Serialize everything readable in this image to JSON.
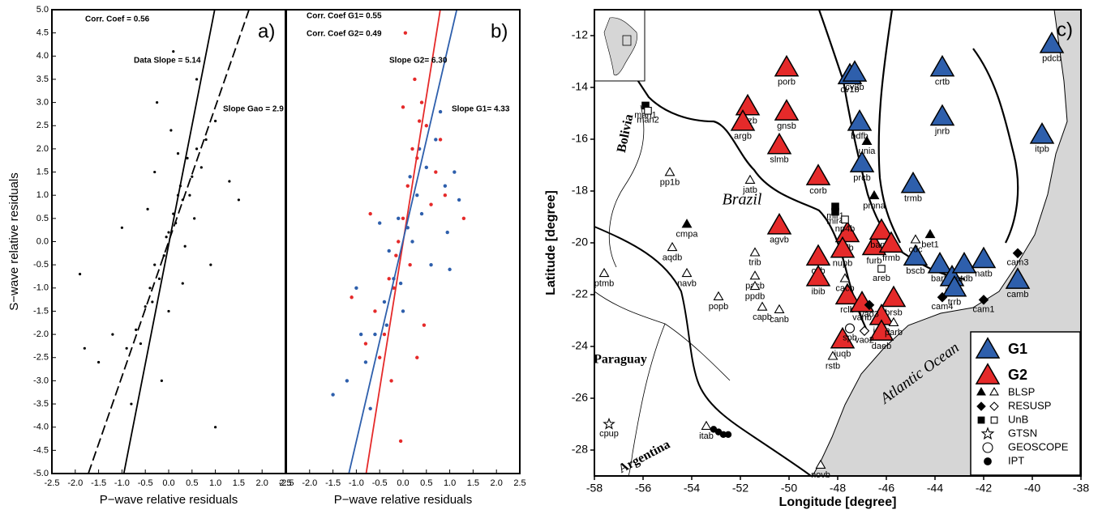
{
  "chart_data": [
    {
      "type": "scatter",
      "xlabel": "P−wave relative residuals",
      "ylabel": "S−wave relative residuals",
      "xlim": [
        -2.5,
        2.5
      ],
      "ylim": [
        -5,
        5
      ],
      "xticks": [
        -2.5,
        {
          "value": -2,
          "label": "-2.0"
        },
        -1.5,
        {
          "value": -1,
          "label": "-1.0"
        },
        -0.5,
        {
          "value": 0,
          "label": "0.0"
        },
        0.5,
        {
          "value": 1,
          "label": "1.0"
        },
        1.5,
        {
          "value": 2,
          "label": "2.0"
        },
        2.5
      ],
      "yticks": [
        {
          "value": -5,
          "label": "-5.0"
        },
        -4.5,
        {
          "value": -4,
          "label": "-4.0"
        },
        -3.5,
        {
          "value": -3,
          "label": "-3.0"
        },
        -2.5,
        {
          "value": -2,
          "label": "-2.0"
        },
        -1.5,
        {
          "value": -1,
          "label": "-1.0"
        },
        -0.5,
        {
          "value": 0,
          "label": "0.0"
        },
        0.5,
        {
          "value": 1,
          "label": "1.0"
        },
        1.5,
        {
          "value": 2,
          "label": "2.0"
        },
        2.5,
        {
          "value": 3,
          "label": "3.0"
        },
        3.5,
        {
          "value": 4,
          "label": "4.0"
        },
        4.5,
        {
          "value": 5,
          "label": "5.0"
        }
      ],
      "annotations": [
        "Corr. Coef = 0.56",
        "Data Slope = 5.14",
        "Slope Gao = 2.9",
        "a)"
      ],
      "series": [
        {
          "color": "#000000",
          "x": [
            -0.3,
            0.1,
            0.2,
            -0.1,
            0.4,
            -0.5,
            0.0,
            0.3,
            -0.2,
            0.6,
            -0.7,
            0.5,
            0.8,
            -0.4,
            0.15,
            -0.05,
            0.25,
            -0.35,
            0.45,
            -0.6,
            0.7,
            -0.9,
            1.0,
            -1.2,
            1.3,
            -1.5,
            1.5,
            -1.9,
            -1.8,
            0.35,
            0.05,
            -0.15,
            0.55,
            -0.25,
            0.1,
            -0.8,
            0.9,
            0.0,
            0.2,
            -0.45,
            -0.3,
            0.6,
            1.0,
            -1.0,
            0.3
          ],
          "values": [
            -0.5,
            0.6,
            1.0,
            -0.3,
            1.8,
            -1.4,
            0.2,
            0.9,
            -0.8,
            2.0,
            -1.9,
            1.4,
            2.2,
            -1.0,
            0.4,
            0.1,
            1.2,
            -1.3,
            1.0,
            -2.2,
            1.6,
            -2.3,
            2.6,
            -2.0,
            1.3,
            -2.6,
            0.9,
            -0.7,
            -2.3,
            -0.1,
            2.4,
            -3.0,
            0.5,
            3.0,
            4.1,
            -3.5,
            -0.5,
            -1.5,
            1.9,
            0.7,
            1.5,
            3.5,
            -4.0,
            0.3,
            -0.9
          ]
        }
      ],
      "lines": [
        {
          "color": "#000000",
          "dash": false,
          "x": [
            -0.96,
            0.985
          ],
          "values": [
            -5,
            5
          ]
        },
        {
          "color": "#000000",
          "dash": true,
          "x": [
            -1.72,
            1.72
          ],
          "values": [
            -5,
            5
          ]
        }
      ]
    },
    {
      "type": "scatter",
      "xlabel": "P−wave relative residuals",
      "xlim": [
        -2.5,
        2.5
      ],
      "ylim": [
        -5,
        5
      ],
      "xticks": [
        -2.5,
        {
          "value": -2,
          "label": "-2.0"
        },
        -1.5,
        {
          "value": -1,
          "label": "-1.0"
        },
        -0.5,
        {
          "value": 0,
          "label": "0.0"
        },
        0.5,
        {
          "value": 1,
          "label": "1.0"
        },
        1.5,
        {
          "value": 2,
          "label": "2.0"
        },
        2.5
      ],
      "annotations": [
        "Corr. Coef G1= 0.55",
        "Corr. Coef G2= 0.49",
        "Slope G2= 6.30",
        "Slope G1= 4.33",
        "b)"
      ],
      "series": [
        {
          "color": "#e52a2a",
          "x": [
            0.0,
            0.2,
            -0.2,
            0.4,
            -0.4,
            0.1,
            -0.1,
            0.3,
            -0.3,
            0.5,
            -0.5,
            0.7,
            -0.6,
            0.25,
            -0.15,
            0.05,
            0.35,
            -0.25,
            0.9,
            -0.8,
            0.45,
            0.15,
            -0.05,
            0.6,
            1.3,
            -1.1,
            0.8,
            -0.7,
            0.3,
            0.0
          ],
          "values": [
            0.5,
            2.0,
            -1.0,
            3.0,
            -2.0,
            1.2,
            0.0,
            1.8,
            -0.8,
            2.5,
            -2.5,
            1.5,
            -1.5,
            3.5,
            -0.3,
            4.5,
            2.6,
            -3.0,
            1.0,
            -2.2,
            -1.8,
            -0.5,
            -4.3,
            0.8,
            0.5,
            -1.2,
            2.2,
            0.6,
            -2.5,
            2.9
          ]
        },
        {
          "color": "#2e5fac",
          "x": [
            0.1,
            -0.2,
            0.3,
            -0.4,
            0.5,
            -0.6,
            0.7,
            -0.8,
            0.9,
            -1.0,
            1.1,
            -1.2,
            0.2,
            -0.1,
            0.4,
            -0.3,
            0.6,
            -0.5,
            0.8,
            -1.5,
            1.2,
            0.0,
            -0.7,
            0.35,
            -0.35,
            0.95,
            -0.9,
            0.15,
            1.0,
            -0.05
          ],
          "values": [
            0.3,
            -0.8,
            1.0,
            -1.3,
            1.6,
            -2.0,
            2.2,
            -2.6,
            1.2,
            -1.0,
            1.5,
            -3.0,
            0.0,
            0.5,
            0.6,
            -0.2,
            -0.5,
            0.4,
            2.8,
            -3.3,
            0.9,
            -1.5,
            -3.6,
            2.0,
            -1.8,
            0.2,
            -2.0,
            1.4,
            -0.6,
            -0.9
          ]
        }
      ],
      "lines": [
        {
          "color": "#e52a2a",
          "dash": false,
          "x": [
            -0.79,
            0.797
          ],
          "values": [
            -5,
            5
          ]
        },
        {
          "color": "#2e5fac",
          "dash": false,
          "x": [
            -1.16,
            1.15
          ],
          "values": [
            -5,
            5
          ]
        }
      ]
    },
    {
      "type": "map",
      "xlabel": "Longitude [degree]",
      "ylabel": "Latitude [degree]",
      "xlim": [
        -58,
        -38
      ],
      "ylim": [
        -29,
        -11
      ],
      "xticks": [
        -58,
        -56,
        -54,
        -52,
        -50,
        -48,
        -46,
        -44,
        -42,
        -40,
        -38
      ],
      "yticks": [
        -28,
        -26,
        -24,
        -22,
        -20,
        -18,
        -16,
        -14,
        -12
      ],
      "annotations": [
        "c)"
      ],
      "places": [
        "Brazil",
        "Paraguay",
        "Argentina",
        "Bolivia",
        "Atlantic Ocean"
      ],
      "legend": {
        "groups": [
          {
            "name": "G1",
            "color": "#2e5fac"
          },
          {
            "name": "G2",
            "color": "#e52a2a"
          }
        ],
        "networks": [
          "BLSP",
          "RESUSP",
          "UnB",
          "GTSN",
          "GEOSCOPE",
          "IPT"
        ]
      },
      "stations": [
        {
          "label": "pdcb",
          "lon": -39.2,
          "lat": -12.4,
          "group": "G1"
        },
        {
          "label": "cv1b",
          "lon": -47.5,
          "lat": -13.6,
          "group": "G1"
        },
        {
          "label": "cv3b",
          "lon": -47.3,
          "lat": -13.5,
          "group": "G1"
        },
        {
          "label": "crtb",
          "lon": -43.7,
          "lat": -13.3,
          "group": "G1"
        },
        {
          "label": "bdfb",
          "lon": -47.1,
          "lat": -15.4,
          "group": "G1"
        },
        {
          "label": "jnrb",
          "lon": -43.7,
          "lat": -15.2,
          "group": "G1"
        },
        {
          "label": "itpb",
          "lon": -39.6,
          "lat": -15.9,
          "group": "G1"
        },
        {
          "label": "prcb",
          "lon": -47.0,
          "lat": -17.0,
          "group": "G1"
        },
        {
          "label": "trmb",
          "lon": -44.9,
          "lat": -17.8,
          "group": "G1"
        },
        {
          "label": "bscb",
          "lon": -44.8,
          "lat": -20.6,
          "group": "G1"
        },
        {
          "label": "barb",
          "lon": -43.8,
          "lat": -20.9,
          "group": "G1"
        },
        {
          "label": "jfob",
          "lon": -43.3,
          "lat": -21.4,
          "group": "G1"
        },
        {
          "label": "atdb",
          "lon": -42.8,
          "lat": -20.9,
          "group": "G1"
        },
        {
          "label": "natb",
          "lon": -42.0,
          "lat": -20.7,
          "group": "G1"
        },
        {
          "label": "camb",
          "lon": -40.6,
          "lat": -21.5,
          "group": "G1"
        },
        {
          "label": "trrb",
          "lon": -43.2,
          "lat": -21.8,
          "group": "G1"
        },
        {
          "label": "porb",
          "lon": -50.1,
          "lat": -13.3,
          "group": "G2"
        },
        {
          "label": "pazb",
          "lon": -51.7,
          "lat": -14.8,
          "group": "G2"
        },
        {
          "label": "gnsb",
          "lon": -50.1,
          "lat": -15.0,
          "group": "G2"
        },
        {
          "label": "argb",
          "lon": -51.9,
          "lat": -15.4,
          "group": "G2"
        },
        {
          "label": "slmb",
          "lon": -50.4,
          "lat": -16.3,
          "group": "G2"
        },
        {
          "label": "corb",
          "lon": -48.8,
          "lat": -17.5,
          "group": "G2"
        },
        {
          "label": "agvb",
          "lon": -50.4,
          "lat": -19.4,
          "group": "G2"
        },
        {
          "label": "rifb",
          "lon": -47.6,
          "lat": -19.7,
          "group": "G2"
        },
        {
          "label": "nupb",
          "lon": -47.8,
          "lat": -20.3,
          "group": "G2"
        },
        {
          "label": "olib",
          "lon": -48.8,
          "lat": -20.6,
          "group": "G2"
        },
        {
          "label": "ibib",
          "lon": -48.8,
          "lat": -21.4,
          "group": "G2"
        },
        {
          "label": "furb",
          "lon": -46.5,
          "lat": -20.2,
          "group": "G2"
        },
        {
          "label": "bamb",
          "lon": -46.2,
          "lat": -19.6,
          "group": "G2"
        },
        {
          "label": "frmb",
          "lon": -45.8,
          "lat": -20.1,
          "group": "G2"
        },
        {
          "label": "rclb",
          "lon": -47.6,
          "lat": -22.1,
          "group": "G2"
        },
        {
          "label": "vanb",
          "lon": -47.0,
          "lat": -22.4,
          "group": "G2"
        },
        {
          "label": "brsb",
          "lon": -45.7,
          "lat": -22.2,
          "group": "G2"
        },
        {
          "label": "igab",
          "lon": -46.2,
          "lat": -22.9,
          "group": "G2"
        },
        {
          "label": "daeb",
          "lon": -46.2,
          "lat": -23.5,
          "group": "G2"
        },
        {
          "label": "juqb",
          "lon": -47.8,
          "lat": -23.8,
          "group": "G2"
        },
        {
          "label": "unia",
          "lon": -46.8,
          "lat": -16.1,
          "network": "BLSP",
          "filled": true
        },
        {
          "label": "pmna",
          "lon": -46.5,
          "lat": -18.2,
          "network": "BLSP",
          "filled": true
        },
        {
          "label": "cmpa",
          "lon": -54.2,
          "lat": -19.3,
          "network": "BLSP",
          "filled": true
        },
        {
          "label": "bet1",
          "lon": -44.2,
          "lat": -19.7,
          "network": "BLSP",
          "filled": true
        },
        {
          "label": "jatb",
          "lon": -51.6,
          "lat": -17.6,
          "network": "BLSP",
          "filled": false
        },
        {
          "label": "pp1b",
          "lon": -54.9,
          "lat": -17.3,
          "network": "BLSP",
          "filled": false
        },
        {
          "label": "aqdb",
          "lon": -54.8,
          "lat": -20.2,
          "network": "BLSP",
          "filled": false
        },
        {
          "label": "navb",
          "lon": -54.2,
          "lat": -21.2,
          "network": "BLSP",
          "filled": false
        },
        {
          "label": "trib",
          "lon": -51.4,
          "lat": -20.4,
          "network": "BLSP",
          "filled": false
        },
        {
          "label": "pacb",
          "lon": -51.4,
          "lat": -21.3,
          "network": "BLSP",
          "filled": false
        },
        {
          "label": "ppdb",
          "lon": -51.4,
          "lat": -21.7,
          "network": "BLSP",
          "filled": false
        },
        {
          "label": "capb",
          "lon": -51.1,
          "lat": -22.5,
          "network": "BLSP",
          "filled": false
        },
        {
          "label": "popb",
          "lon": -52.9,
          "lat": -22.1,
          "network": "BLSP",
          "filled": false
        },
        {
          "label": "canb",
          "lon": -50.4,
          "lat": -22.6,
          "network": "BLSP",
          "filled": false
        },
        {
          "label": "ptmb",
          "lon": -57.6,
          "lat": -21.2,
          "network": "BLSP",
          "filled": false
        },
        {
          "label": "rstb",
          "lon": -48.2,
          "lat": -24.4,
          "network": "BLSP",
          "filled": false
        },
        {
          "label": "novb",
          "lon": -48.7,
          "lat": -28.6,
          "network": "BLSP",
          "filled": false
        },
        {
          "label": "cdc",
          "lon": -44.8,
          "lat": -19.9,
          "network": "BLSP",
          "filled": false
        },
        {
          "label": "cacb",
          "lon": -47.7,
          "lat": -21.4,
          "network": "BLSP",
          "filled": false
        },
        {
          "label": "parb",
          "lon": -45.7,
          "lat": -23.1,
          "network": "BLSP",
          "filled": false
        },
        {
          "label": "itab",
          "lon": -53.4,
          "lat": -27.1,
          "network": "BLSP",
          "filled": false
        },
        {
          "label": "cam3",
          "lon": -40.6,
          "lat": -20.4,
          "network": "RESUSP",
          "filled": true
        },
        {
          "label": "cam4",
          "lon": -43.7,
          "lat": -22.1,
          "network": "RESUSP",
          "filled": true
        },
        {
          "label": "cam1",
          "lon": -42.0,
          "lat": -22.2,
          "network": "RESUSP",
          "filled": true
        },
        {
          "label": "vao3",
          "lon": -46.7,
          "lat": -22.4,
          "network": "RESUSP",
          "filled": true
        },
        {
          "label": "vao2",
          "lon": -46.9,
          "lat": -23.4,
          "network": "RESUSP",
          "filled": false
        },
        {
          "label": "man1",
          "lon": -55.9,
          "lat": -14.7,
          "network": "UnB",
          "filled": true
        },
        {
          "label": "man2",
          "lon": -55.8,
          "lat": -14.9,
          "network": "UnB",
          "filled": false
        },
        {
          "label": "mir1",
          "lon": -48.1,
          "lat": -18.6,
          "network": "UnB",
          "filled": true
        },
        {
          "label": "mir4",
          "lon": -48.1,
          "lat": -18.8,
          "network": "UnB",
          "filled": true
        },
        {
          "label": "np4b",
          "lon": -47.7,
          "lat": -19.1,
          "network": "UnB",
          "filled": false
        },
        {
          "label": "areb",
          "lon": -46.2,
          "lat": -21.0,
          "network": "UnB",
          "filled": false
        },
        {
          "label": "cpup",
          "lon": -57.4,
          "lat": -27.0,
          "network": "GTSN",
          "filled": false
        },
        {
          "label": "spb",
          "lon": -47.5,
          "lat": -23.3,
          "network": "GEOSCOPE",
          "filled": false
        },
        {
          "lon": -53.1,
          "lat": -27.2,
          "network": "IPT",
          "filled": true
        },
        {
          "lon": -52.9,
          "lat": -27.3,
          "network": "IPT",
          "filled": true
        },
        {
          "lon": -52.7,
          "lat": -27.4,
          "network": "IPT",
          "filled": true
        },
        {
          "lon": -52.5,
          "lat": -27.4,
          "network": "IPT",
          "filled": true
        }
      ]
    }
  ]
}
